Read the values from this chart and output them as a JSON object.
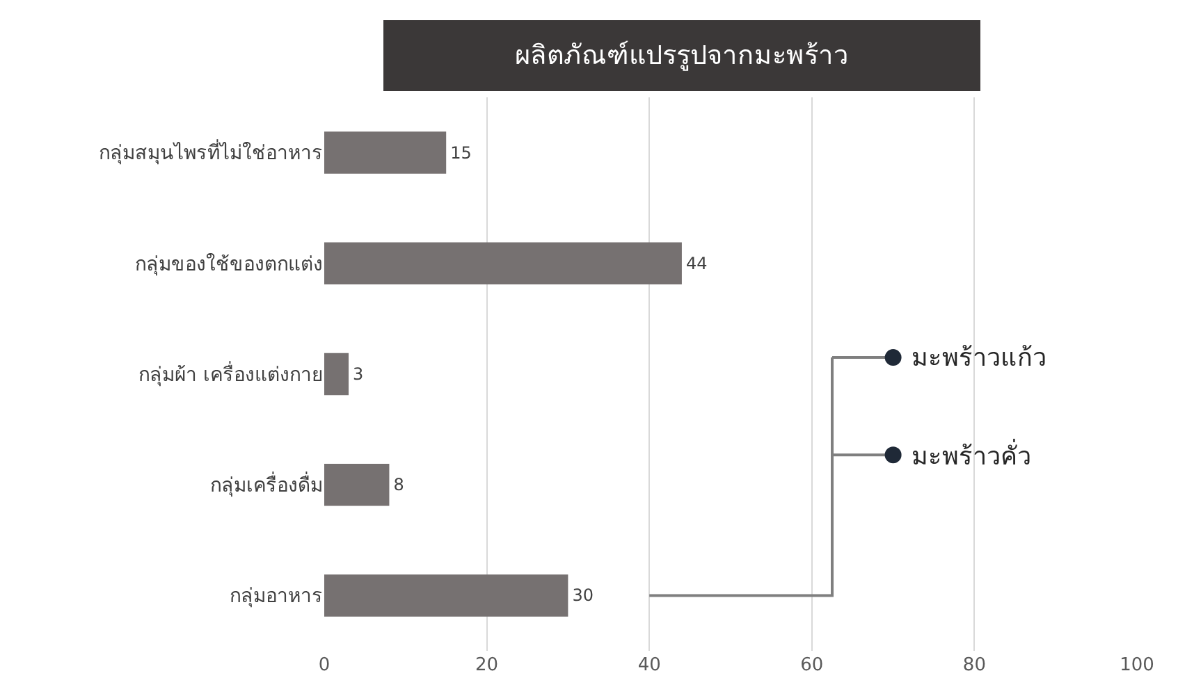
{
  "chart_data": {
    "type": "bar",
    "orientation": "horizontal",
    "title": "ผลิตภัณฑ์แปรรูปจากมะพร้าว",
    "categories": [
      "กลุ่มสมุนไพรที่ไม่ใช่อาหาร",
      "กลุ่มของใช้ของตกแต่ง",
      "กลุ่มผ้า เครื่องแต่งกาย",
      "กลุ่มเครื่องดื่ม",
      "กลุ่มอาหาร"
    ],
    "values": [
      15,
      44,
      3,
      8,
      30
    ],
    "color": "#767171",
    "data_labels": true,
    "xlim": [
      0,
      100
    ],
    "xticks": [
      0,
      20,
      40,
      60,
      80,
      100
    ],
    "grid": "x",
    "annotations": [
      "มะพร้าวแก้ว",
      "มะพร้าวคั่ว"
    ]
  }
}
